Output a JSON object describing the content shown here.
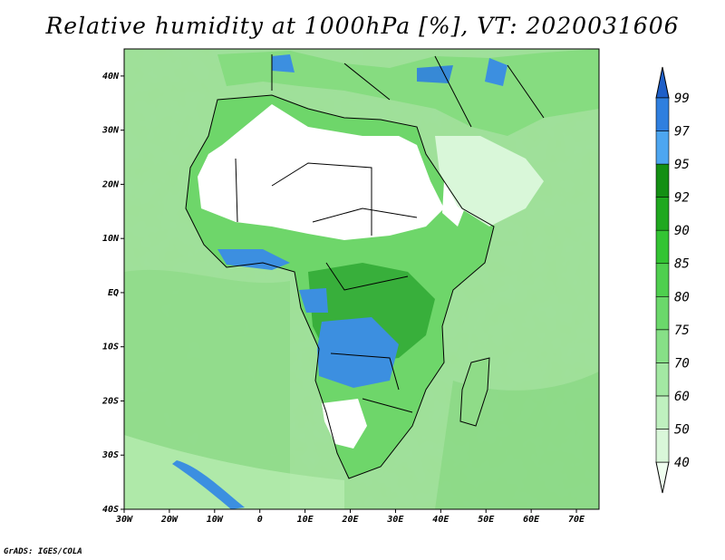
{
  "title": "Relative humidity at 1000hPa [%], VT: 2020031606",
  "credit": "GrADS: IGES/COLA",
  "map": {
    "lon_range": [
      -30,
      75
    ],
    "lat_range": [
      -40,
      45
    ],
    "x_ticks": [
      "30W",
      "20W",
      "10W",
      "0",
      "10E",
      "20E",
      "30E",
      "40E",
      "50E",
      "60E",
      "70E"
    ],
    "y_ticks": [
      "40N",
      "30N",
      "20N",
      "10N",
      "EQ",
      "10S",
      "20S",
      "30S",
      "40S"
    ]
  },
  "colorbar": {
    "levels": [
      "40",
      "50",
      "60",
      "70",
      "75",
      "80",
      "85",
      "90",
      "92",
      "95",
      "97",
      "99"
    ],
    "colors": [
      "#f0fff0",
      "#d9f7d9",
      "#bff0bf",
      "#a3e8a3",
      "#87e087",
      "#6bd86b",
      "#4fcf4f",
      "#33c433",
      "#1fa81f",
      "#138f13",
      "#4da6f0",
      "#2f7fdf",
      "#1e5fc8"
    ]
  },
  "colors": {
    "land_outline": "#000000",
    "dry_land": "#ffffff",
    "ocean": "#a8e6a0",
    "moist": "#3c8fe0"
  }
}
